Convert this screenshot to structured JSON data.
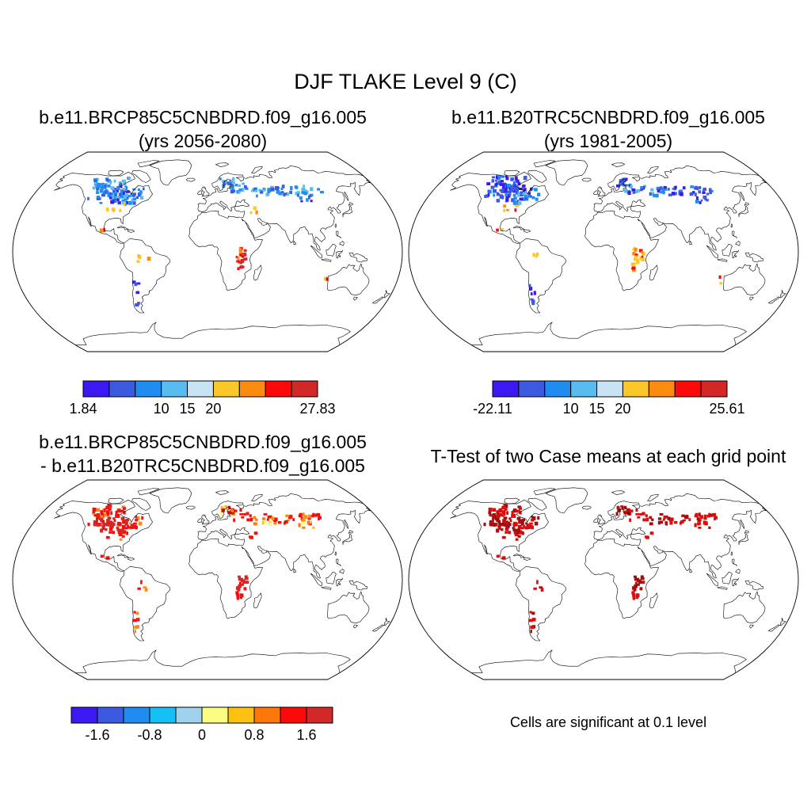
{
  "title": "DJF TLAKE Level 9 (C)",
  "panels": [
    {
      "id": "case1",
      "title_line1": "b.e11.BRCP85C5CNBDRD.f09_g16.005",
      "title_line2": "(yrs 2056-2080)",
      "colorbar": {
        "colors": [
          "#3c19f2",
          "#3c5ae0",
          "#1e8cf0",
          "#58bcf0",
          "#c8e4f4",
          "#fcc828",
          "#fc8c10",
          "#fc0a0a",
          "#d22828"
        ],
        "labels": [
          "1.84",
          "10",
          "15",
          "20",
          "27.83"
        ]
      },
      "palette_order": [
        "#3c19f2",
        "#3c5ae0",
        "#1e8cf0",
        "#58bcf0",
        "#fcc828",
        "#fc8c10",
        "#fc0a0a",
        "#d22828"
      ]
    },
    {
      "id": "case2",
      "title_line1": "b.e11.B20TRC5CNBDRD.f09_g16.005",
      "title_line2": "(yrs 1981-2005)",
      "colorbar": {
        "colors": [
          "#3c19f2",
          "#3c5ae0",
          "#1e8cf0",
          "#58bcf0",
          "#c8e4f4",
          "#fcc828",
          "#fc8c10",
          "#fc0a0a",
          "#d22828"
        ],
        "labels": [
          "-22.11",
          "10",
          "15",
          "20",
          "25.61"
        ]
      }
    },
    {
      "id": "diff",
      "title_line1": "b.e11.BRCP85C5CNBDRD.f09_g16.005",
      "title_line2": "- b.e11.B20TRC5CNBDRD.f09_g16.005",
      "colorbar": {
        "colors": [
          "#3c19f2",
          "#3c5ae0",
          "#1e8cf0",
          "#14c0f4",
          "#a0d2ee",
          "#fcfc82",
          "#fcc010",
          "#fc7808",
          "#fc0a0a",
          "#d22828"
        ],
        "labels": [
          "-1.6",
          "-0.8",
          "0",
          "0.8",
          "1.6"
        ]
      }
    },
    {
      "id": "ttest",
      "title_line1": "T-Test of two Case means at each grid point",
      "note": "Cells are significant at 0.1 level"
    }
  ]
}
